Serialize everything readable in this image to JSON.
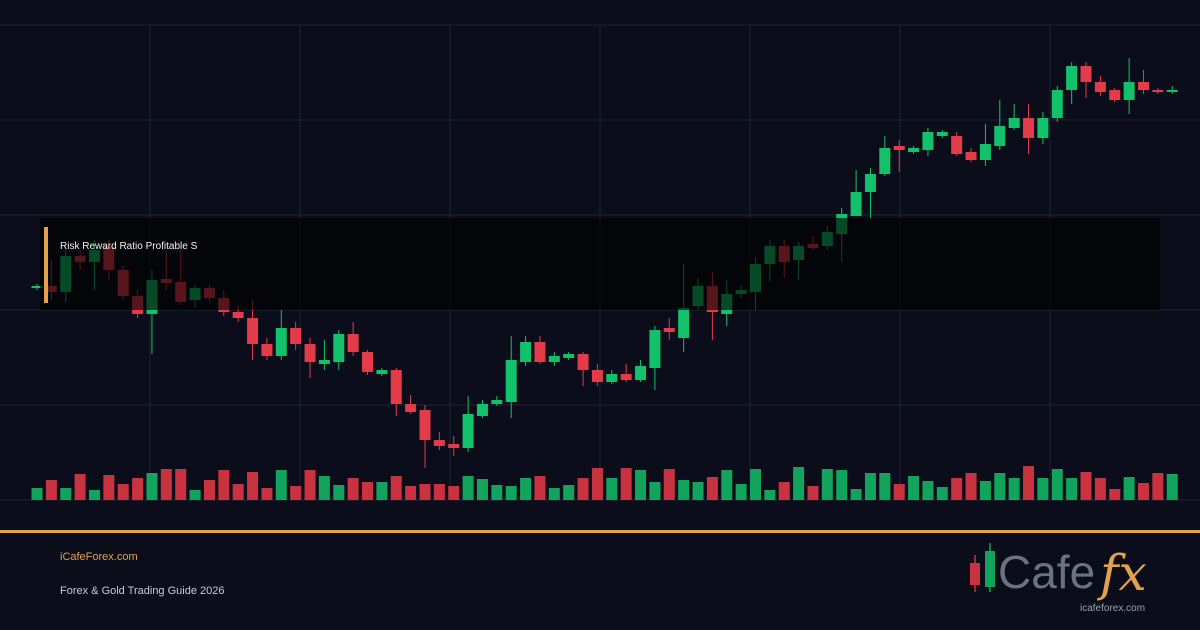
{
  "chart_data": {
    "type": "candlestick",
    "annotation": "Risk Reward Ratio Profitable S",
    "ylim": [
      0,
      475
    ],
    "volume_lim": [
      0,
      475
    ],
    "up_color": "#12c26b",
    "down_color": "#e33b4a",
    "volume_up_color": "#12a35c",
    "volume_down_color": "#c9323f",
    "open": [
      212,
      214,
      208,
      244,
      238,
      254,
      230,
      204,
      186,
      221,
      218,
      200,
      212,
      202,
      188,
      182,
      156,
      144,
      172,
      156,
      136,
      138,
      166,
      148,
      126,
      130,
      96,
      90,
      60,
      56,
      52,
      84,
      96,
      98,
      138,
      158,
      138,
      142,
      146,
      130,
      118,
      126,
      120,
      132,
      172,
      162,
      194,
      214,
      186,
      206,
      208,
      236,
      254,
      240,
      256,
      254,
      266,
      284,
      308,
      326,
      354,
      348,
      350,
      364,
      364,
      348,
      340,
      354,
      372,
      382,
      362,
      382,
      410,
      434,
      418,
      410,
      400,
      418,
      410,
      408
    ],
    "high": [
      216,
      240,
      250,
      250,
      260,
      260,
      235,
      210,
      230,
      250,
      250,
      215,
      215,
      210,
      195,
      200,
      162,
      190,
      178,
      162,
      160,
      170,
      178,
      150,
      132,
      132,
      105,
      95,
      68,
      64,
      104,
      100,
      104,
      164,
      164,
      164,
      148,
      148,
      148,
      136,
      130,
      136,
      140,
      174,
      182,
      236,
      222,
      228,
      220,
      215,
      242,
      260,
      260,
      258,
      264,
      274,
      292,
      330,
      332,
      364,
      360,
      354,
      372,
      370,
      368,
      352,
      376,
      400,
      396,
      396,
      388,
      414,
      438,
      438,
      424,
      412,
      442,
      430,
      412,
      414
    ],
    "low": [
      210,
      200,
      197,
      230,
      210,
      220,
      200,
      182,
      146,
      210,
      195,
      192,
      198,
      184,
      178,
      140,
      140,
      140,
      150,
      122,
      130,
      130,
      144,
      125,
      124,
      84,
      86,
      32,
      50,
      44,
      48,
      82,
      94,
      82,
      134,
      136,
      134,
      140,
      114,
      114,
      116,
      118,
      118,
      110,
      160,
      148,
      190,
      160,
      174,
      202,
      190,
      218,
      222,
      220,
      250,
      250,
      238,
      284,
      282,
      324,
      328,
      346,
      344,
      362,
      344,
      338,
      334,
      350,
      370,
      346,
      356,
      378,
      396,
      402,
      404,
      398,
      386,
      406,
      406,
      406
    ],
    "close": [
      214,
      208,
      244,
      238,
      250,
      230,
      204,
      186,
      220,
      217,
      198,
      212,
      202,
      188,
      182,
      156,
      144,
      172,
      156,
      138,
      140,
      166,
      148,
      128,
      130,
      96,
      88,
      60,
      54,
      52,
      86,
      96,
      100,
      140,
      158,
      138,
      144,
      146,
      130,
      118,
      126,
      120,
      134,
      170,
      168,
      192,
      214,
      188,
      206,
      210,
      236,
      254,
      238,
      254,
      252,
      268,
      286,
      308,
      326,
      352,
      350,
      352,
      368,
      368,
      346,
      340,
      356,
      374,
      382,
      362,
      382,
      410,
      434,
      418,
      408,
      400,
      418,
      410,
      408,
      410
    ],
    "volume": [
      12,
      20,
      12,
      26,
      10,
      25,
      16,
      22,
      27,
      31,
      31,
      10,
      20,
      30,
      16,
      28,
      12,
      30,
      14,
      30,
      24,
      15,
      22,
      18,
      18,
      24,
      14,
      16,
      16,
      14,
      24,
      21,
      15,
      14,
      22,
      24,
      12,
      15,
      22,
      32,
      22,
      32,
      30,
      18,
      31,
      20,
      18,
      23,
      30,
      16,
      31,
      10,
      18,
      33,
      14,
      31,
      30,
      11,
      27,
      27,
      16,
      24,
      19,
      13,
      22,
      27,
      19,
      27,
      22,
      34,
      22,
      31,
      22,
      28,
      22,
      11,
      23,
      17,
      27,
      26
    ]
  },
  "footer": {
    "site": "iCafeForex.com",
    "tagline": "Forex & Gold Trading Guide 2026"
  },
  "logo": {
    "word": "Cafe",
    "accent": "fx",
    "url": "icafeforex.com"
  }
}
